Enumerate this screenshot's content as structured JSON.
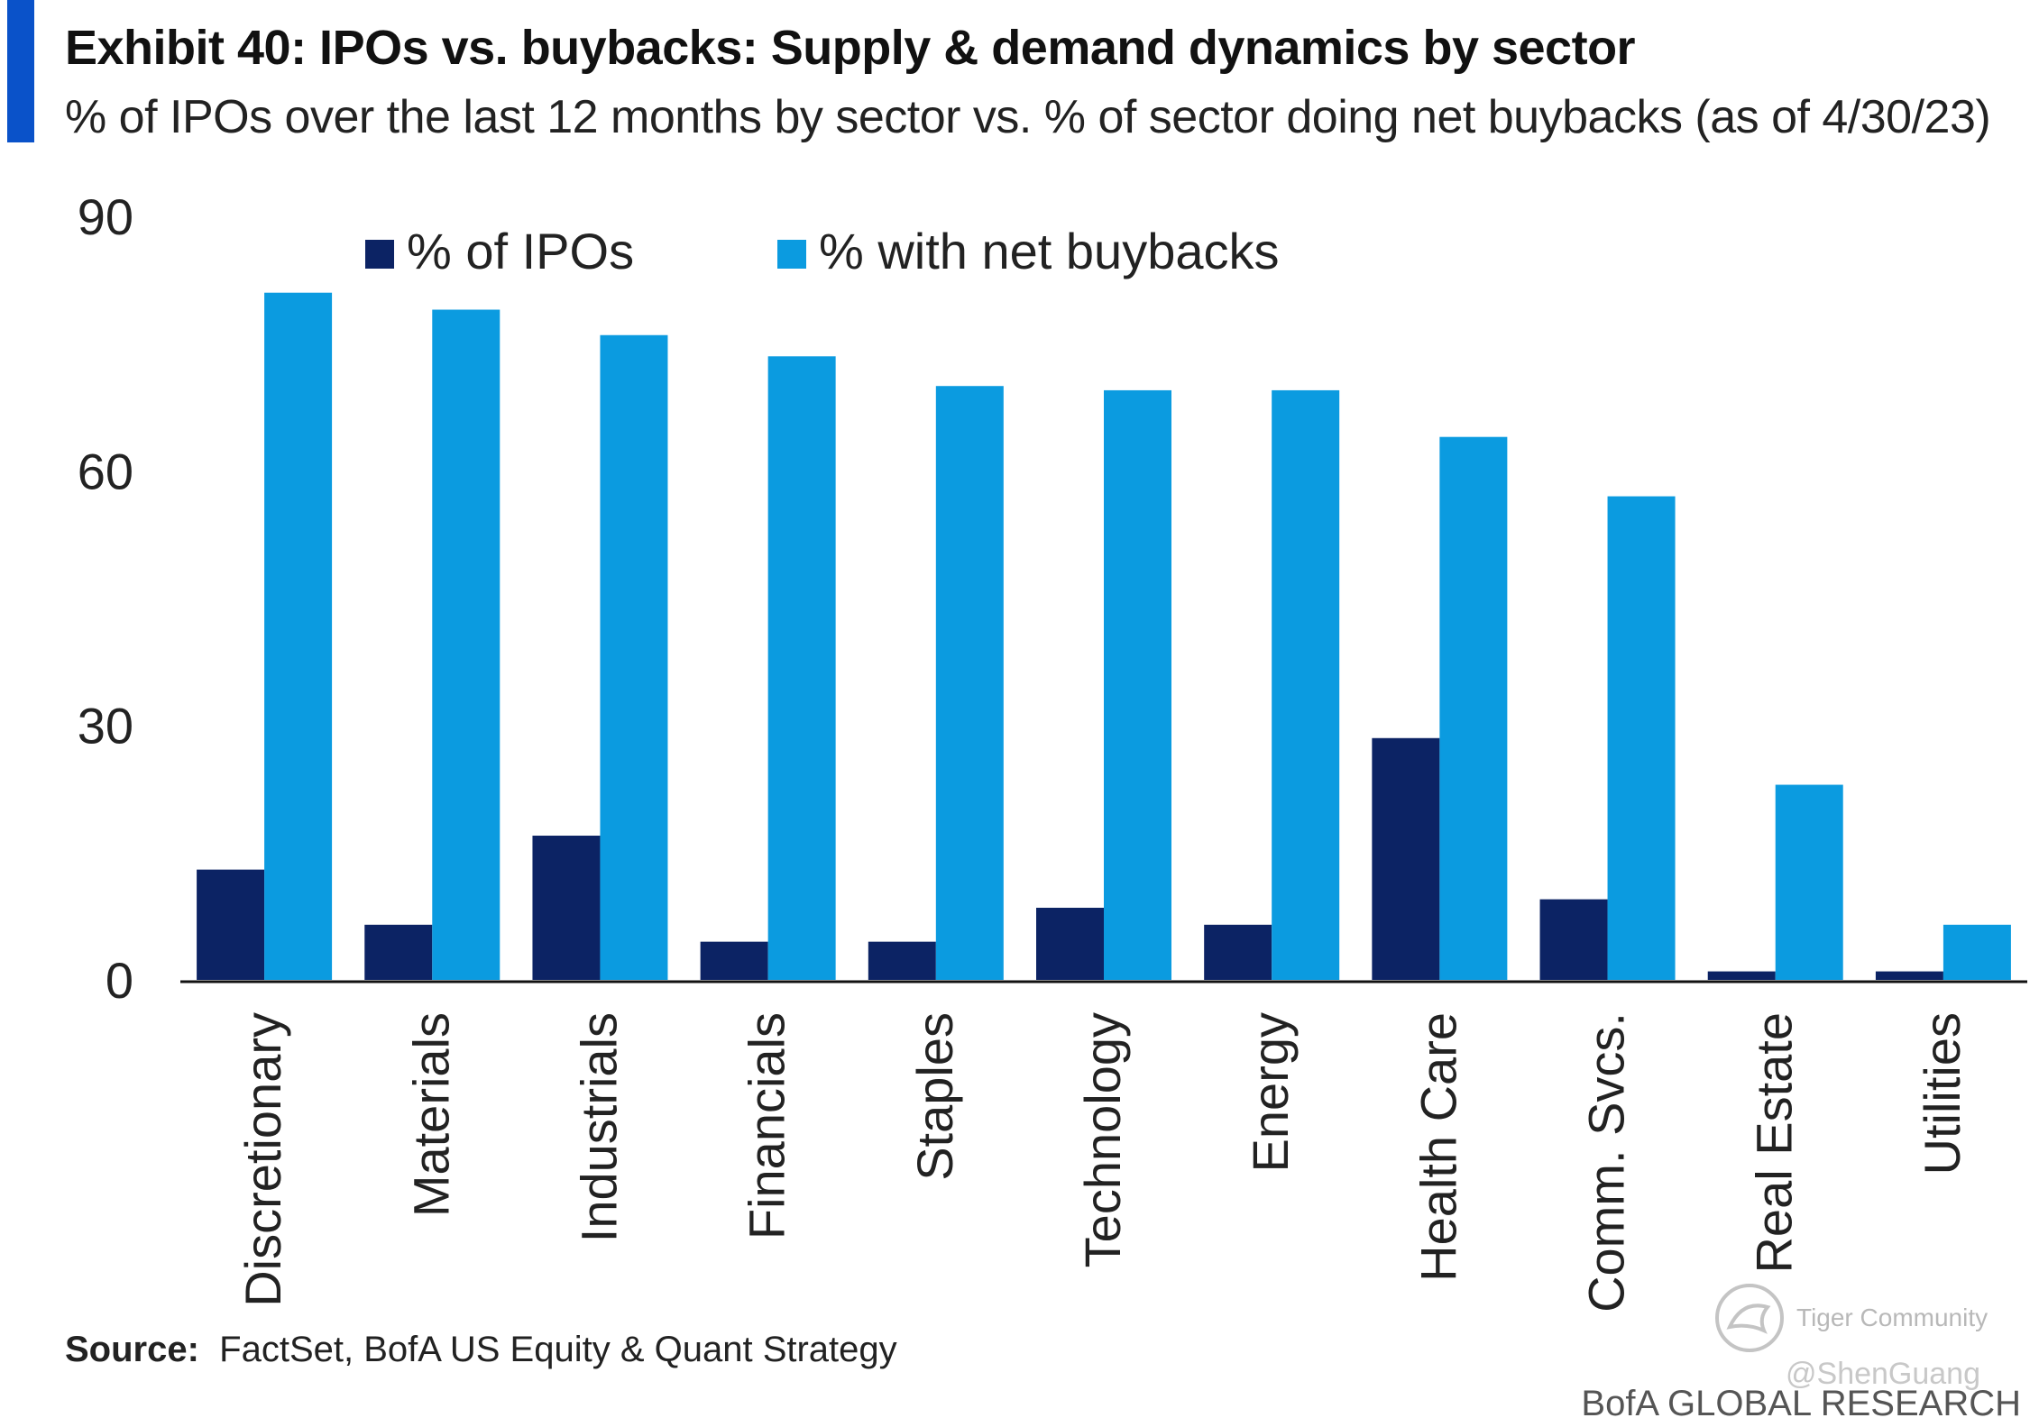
{
  "header": {
    "title": "Exhibit 40: IPOs vs. buybacks: Supply & demand dynamics by sector",
    "subtitle": "% of IPOs over the last 12 months by sector vs. % of sector doing net buybacks (as of 4/30/23)"
  },
  "chart_data": {
    "type": "bar",
    "categories": [
      "Discretionary",
      "Materials",
      "Industrials",
      "Financials",
      "Staples",
      "Technology",
      "Energy",
      "Health Care",
      "Comm. Svcs.",
      "Real Estate",
      "Utilities"
    ],
    "series": [
      {
        "name": "% of IPOs",
        "color": "#0c2364",
        "values": [
          13,
          6.5,
          17,
          4.5,
          4.5,
          8.5,
          6.5,
          28.5,
          9.5,
          1,
          1
        ]
      },
      {
        "name": "% with net buybacks",
        "color": "#0b9be0",
        "values": [
          81,
          79,
          76,
          73.5,
          70,
          69.5,
          69.5,
          64,
          57,
          23,
          6.5
        ]
      }
    ],
    "ylim": [
      0,
      90
    ],
    "yticks": [
      0,
      30,
      60,
      90
    ],
    "legend_position": "top",
    "grid": false,
    "xlabel": "",
    "ylabel": ""
  },
  "footer": {
    "source_label": "Source:",
    "source_text": "FactSet, BofA US Equity & Quant Strategy",
    "brand": "BofA GLOBAL RESEARCH"
  },
  "watermark": {
    "text": "Tiger Community",
    "user": "@ShenGuang"
  }
}
